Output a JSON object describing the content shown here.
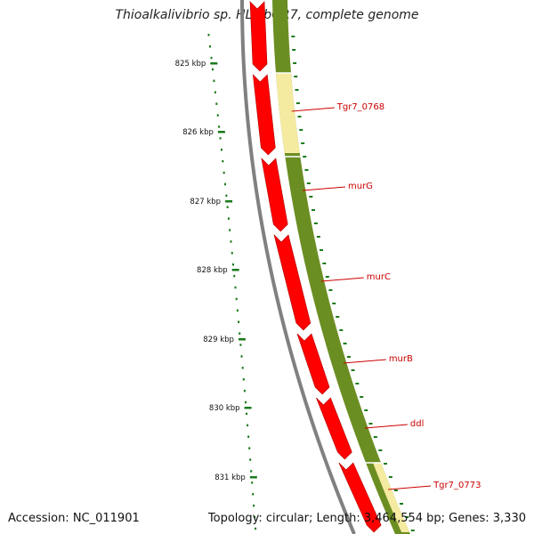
{
  "title": "Thioalkalivibrio sp. HL-EbGR7, complete genome",
  "footer": {
    "accession": "Accession: NC_011901",
    "summary": "Topology: circular; Length: 3,464,554 bp; Genes: 3,330"
  },
  "colors": {
    "backbone": "#808080",
    "cds_forward": "#ff0000",
    "orf_track": "#6b8e23",
    "highlight": "#f5eba0",
    "ruler": "#1a7a1a",
    "gene_label": "#cc0000"
  },
  "ruler": {
    "labels": [
      "825 kbp",
      "826 kbp",
      "827 kbp",
      "828 kbp",
      "829 kbp",
      "830 kbp",
      "831 kbp"
    ]
  },
  "genes": [
    {
      "label": "Tgr7_0768"
    },
    {
      "label": "murG"
    },
    {
      "label": "murC"
    },
    {
      "label": "murB"
    },
    {
      "label": "ddl"
    },
    {
      "label": "Tgr7_0773"
    }
  ]
}
